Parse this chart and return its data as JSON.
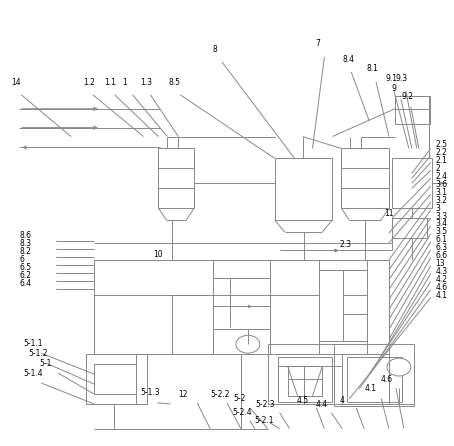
{
  "fig_width": 4.54,
  "fig_height": 4.46,
  "dpi": 100,
  "bg_color": "#ffffff",
  "lc": "#888888",
  "lw": 0.7,
  "fs": 5.5
}
